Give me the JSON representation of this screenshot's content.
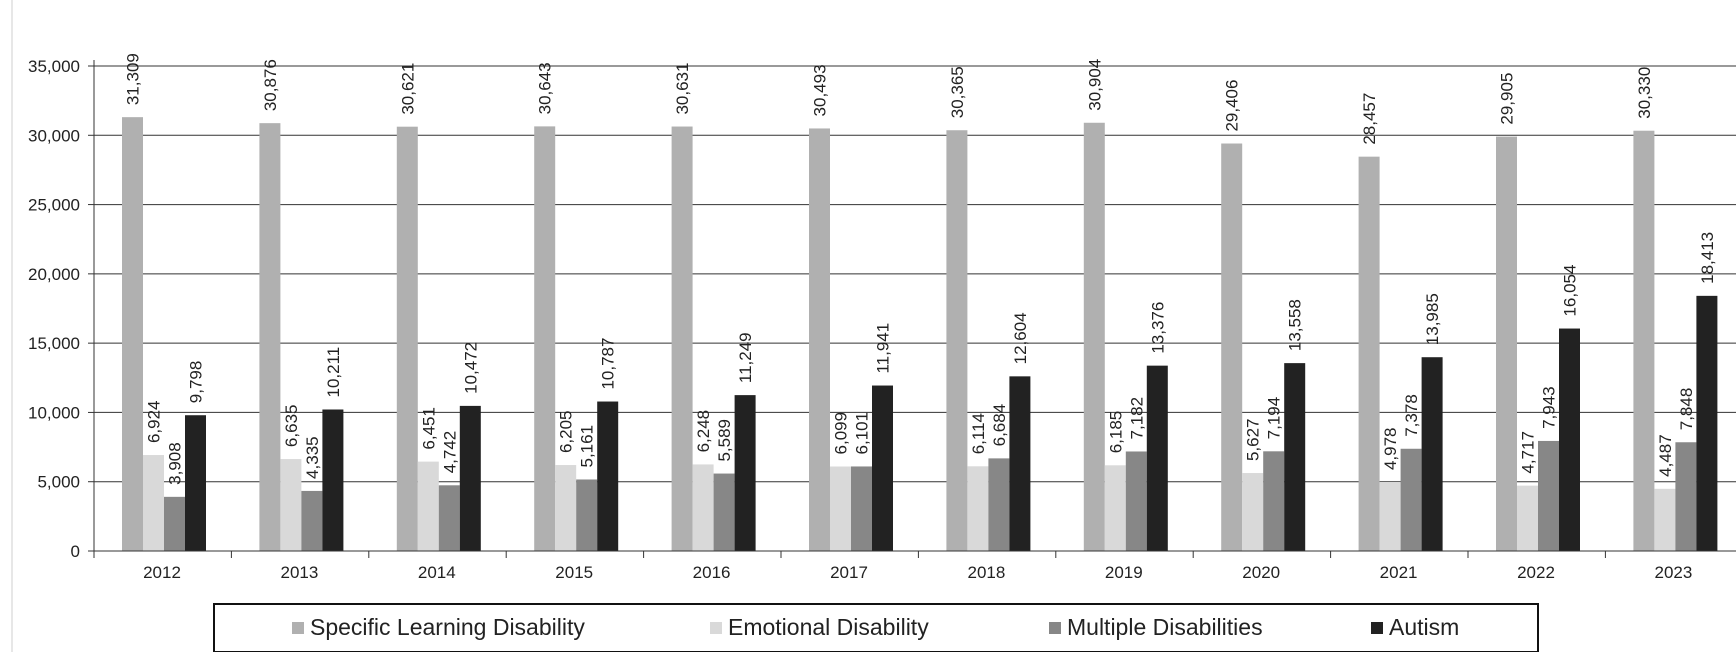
{
  "chart_data": {
    "type": "bar",
    "categories": [
      "2012",
      "2013",
      "2014",
      "2015",
      "2016",
      "2017",
      "2018",
      "2019",
      "2020",
      "2021",
      "2022",
      "2023"
    ],
    "series": [
      {
        "name": "Specific Learning Disability",
        "color": "#b0b0b0",
        "values": [
          31309,
          30876,
          30621,
          30643,
          30631,
          30493,
          30365,
          30904,
          29406,
          28457,
          29905,
          30330
        ],
        "labels": [
          "31,309",
          "30,876",
          "30,621",
          "30,643",
          "30,631",
          "30,493",
          "30,365",
          "30,904",
          "29,406",
          "28,457",
          "29,905",
          "30,330"
        ]
      },
      {
        "name": "Emotional Disability",
        "color": "#d9d9d9",
        "values": [
          6924,
          6635,
          6451,
          6205,
          6248,
          6099,
          6114,
          6185,
          5627,
          4978,
          4717,
          4487
        ],
        "labels": [
          "6,924",
          "6,635",
          "6,451",
          "6,205",
          "6,248",
          "6,099",
          "6,114",
          "6,185",
          "5,627",
          "4,978",
          "4,717",
          "4,487"
        ]
      },
      {
        "name": "Multiple Disabilities",
        "color": "#878787",
        "values": [
          3908,
          4335,
          4742,
          5161,
          5589,
          6101,
          6684,
          7182,
          7194,
          7378,
          7943,
          7848
        ],
        "labels": [
          "3,908",
          "4,335",
          "4,742",
          "5,161",
          "5,589",
          "6,101",
          "6,684",
          "7,182",
          "7,194",
          "7,378",
          "7,943",
          "7,848"
        ]
      },
      {
        "name": "Autism",
        "color": "#222222",
        "values": [
          9798,
          10211,
          10472,
          10787,
          11249,
          11941,
          12604,
          13376,
          13558,
          13985,
          16054,
          18413
        ],
        "labels": [
          "9,798",
          "10,211",
          "10,472",
          "10,787",
          "11,249",
          "11,941",
          "12,604",
          "13,376",
          "13,558",
          "13,985",
          "16,054",
          "18,413"
        ]
      }
    ],
    "y_ticks": [
      0,
      5000,
      10000,
      15000,
      20000,
      25000,
      30000,
      35000
    ],
    "y_tick_labels": [
      "0",
      "5,000",
      "10,000",
      "15,000",
      "20,000",
      "25,000",
      "30,000",
      "35,000"
    ],
    "ylim": [
      0,
      35000
    ],
    "grid": true,
    "legend_position": "bottom"
  }
}
